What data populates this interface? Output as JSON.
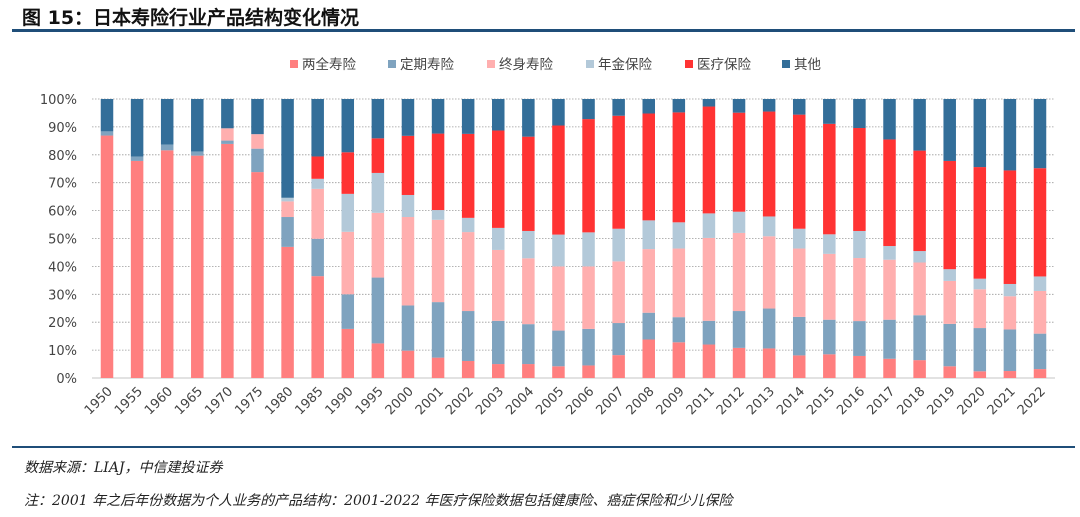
{
  "figure": {
    "title": "图 15：日本寿险行业产品结构变化情况",
    "source": "数据来源：LIAJ，中信建投证券",
    "note": "注：2001 年之后年份数据为个人业务的产品结构：2001-2022 年医疗保险数据包括健康险、癌症保险和少儿保险"
  },
  "chart_data": {
    "type": "bar",
    "stacked": true,
    "normalized": true,
    "legend_position": "top",
    "grid": true,
    "ylim": [
      0,
      100
    ],
    "yticks": [
      "0%",
      "10%",
      "20%",
      "30%",
      "40%",
      "50%",
      "60%",
      "70%",
      "80%",
      "90%",
      "100%"
    ],
    "categories": [
      "1950",
      "1955",
      "1960",
      "1965",
      "1970",
      "1975",
      "1980",
      "1985",
      "1990",
      "1995",
      "2000",
      "2001",
      "2002",
      "2003",
      "2004",
      "2005",
      "2006",
      "2007",
      "2008",
      "2009",
      "2011",
      "2012",
      "2013",
      "2014",
      "2015",
      "2016",
      "2017",
      "2018",
      "2019",
      "2020",
      "2021",
      "2022"
    ],
    "series": [
      {
        "name": "两全寿险",
        "color": "#FF7F7F",
        "values": [
          86.9,
          77.8,
          81.6,
          79.7,
          83.9,
          73.8,
          47.0,
          36.5,
          17.6,
          12.4,
          9.8,
          7.3,
          6.1,
          5.0,
          5.0,
          4.2,
          4.5,
          8.2,
          13.8,
          12.8,
          12.0,
          10.8,
          10.6,
          8.1,
          8.5,
          7.9,
          6.9,
          6.4,
          4.2,
          2.4,
          2.5,
          3.2
        ]
      },
      {
        "name": "定期寿险",
        "color": "#7FA3BF",
        "values": [
          1.5,
          1.6,
          2.1,
          1.5,
          1.2,
          8.4,
          10.7,
          13.4,
          12.4,
          23.6,
          16.2,
          19.9,
          17.9,
          15.5,
          14.3,
          12.8,
          13.1,
          11.5,
          9.6,
          9.0,
          8.5,
          13.2,
          14.3,
          13.8,
          12.4,
          12.5,
          14.0,
          16.1,
          15.2,
          15.5,
          14.9,
          12.7
        ]
      },
      {
        "name": "终身寿险",
        "color": "#FFAFAF",
        "values": [
          0,
          0,
          0,
          0,
          4.4,
          5.2,
          5.6,
          17.9,
          22.4,
          23.2,
          31.7,
          29.5,
          28.3,
          25.4,
          23.6,
          23.0,
          22.4,
          22.1,
          22.8,
          24.6,
          29.7,
          28.0,
          25.9,
          24.5,
          23.6,
          22.6,
          21.5,
          18.9,
          15.4,
          13.9,
          11.9,
          15.3
        ]
      },
      {
        "name": "年金保险",
        "color": "#B3C9D9",
        "values": [
          0,
          0,
          0,
          0,
          0,
          0,
          1.3,
          3.6,
          13.6,
          14.3,
          7.9,
          3.5,
          5.1,
          7.9,
          9.8,
          11.4,
          12.2,
          11.7,
          10.3,
          9.4,
          8.8,
          7.6,
          7.1,
          7.1,
          7.0,
          9.7,
          4.9,
          4.1,
          4.2,
          3.8,
          4.4,
          5.2
        ]
      },
      {
        "name": "医疗保险",
        "color": "#FF3333",
        "values": [
          0,
          0,
          0,
          0,
          0,
          0,
          0,
          8.0,
          14.9,
          12.4,
          21.2,
          27.4,
          30.1,
          34.9,
          33.8,
          39.1,
          40.6,
          40.5,
          38.3,
          39.4,
          38.3,
          35.5,
          37.6,
          40.9,
          39.6,
          36.9,
          38.2,
          36.0,
          38.8,
          40.0,
          40.7,
          38.8
        ]
      },
      {
        "name": "其他",
        "color": "#336E99",
        "values": [
          11.6,
          20.6,
          16.3,
          18.8,
          10.5,
          12.6,
          35.4,
          20.6,
          19.1,
          14.1,
          13.2,
          12.4,
          12.5,
          11.3,
          13.5,
          9.5,
          7.2,
          6.0,
          5.2,
          4.8,
          2.7,
          4.9,
          4.5,
          5.6,
          8.9,
          10.4,
          14.5,
          18.5,
          22.2,
          24.4,
          25.6,
          24.8
        ]
      }
    ]
  }
}
